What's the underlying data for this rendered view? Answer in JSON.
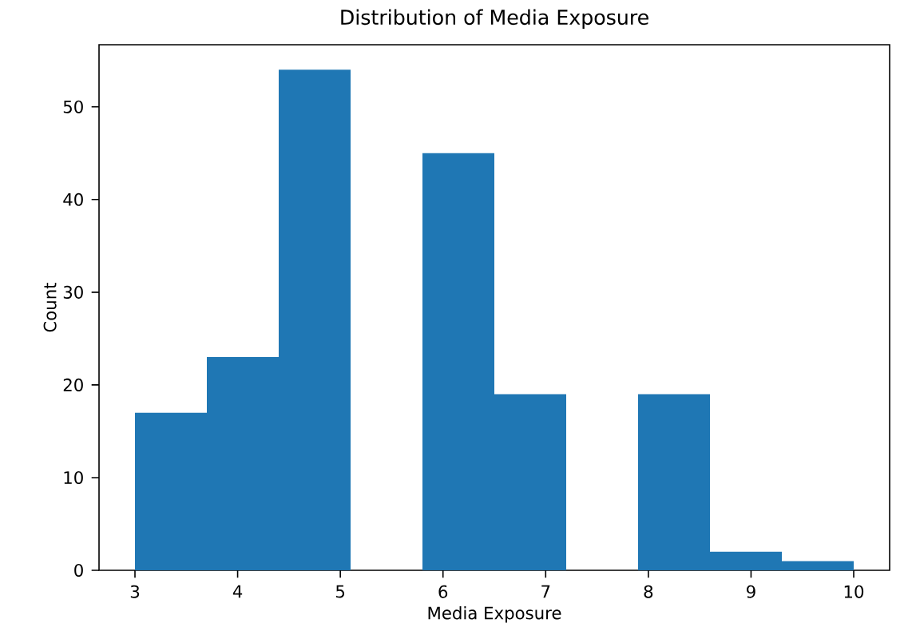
{
  "chart_data": {
    "type": "histogram",
    "title": "Distribution of Media Exposure",
    "xlabel": "Media Exposure",
    "ylabel": "Count",
    "bins": [
      3,
      3.7,
      4.4,
      5.1,
      5.8,
      6.5,
      7.2,
      7.9,
      8.6,
      9.3,
      10
    ],
    "values": [
      17,
      23,
      54,
      0,
      45,
      19,
      0,
      19,
      2,
      1
    ],
    "color": "#1f77b4",
    "xlim": [
      2.65,
      10.35
    ],
    "ylim": [
      0,
      56.7
    ],
    "xticks": [
      3,
      4,
      5,
      6,
      7,
      8,
      9,
      10
    ],
    "yticks": [
      0,
      10,
      20,
      30,
      40,
      50
    ]
  }
}
